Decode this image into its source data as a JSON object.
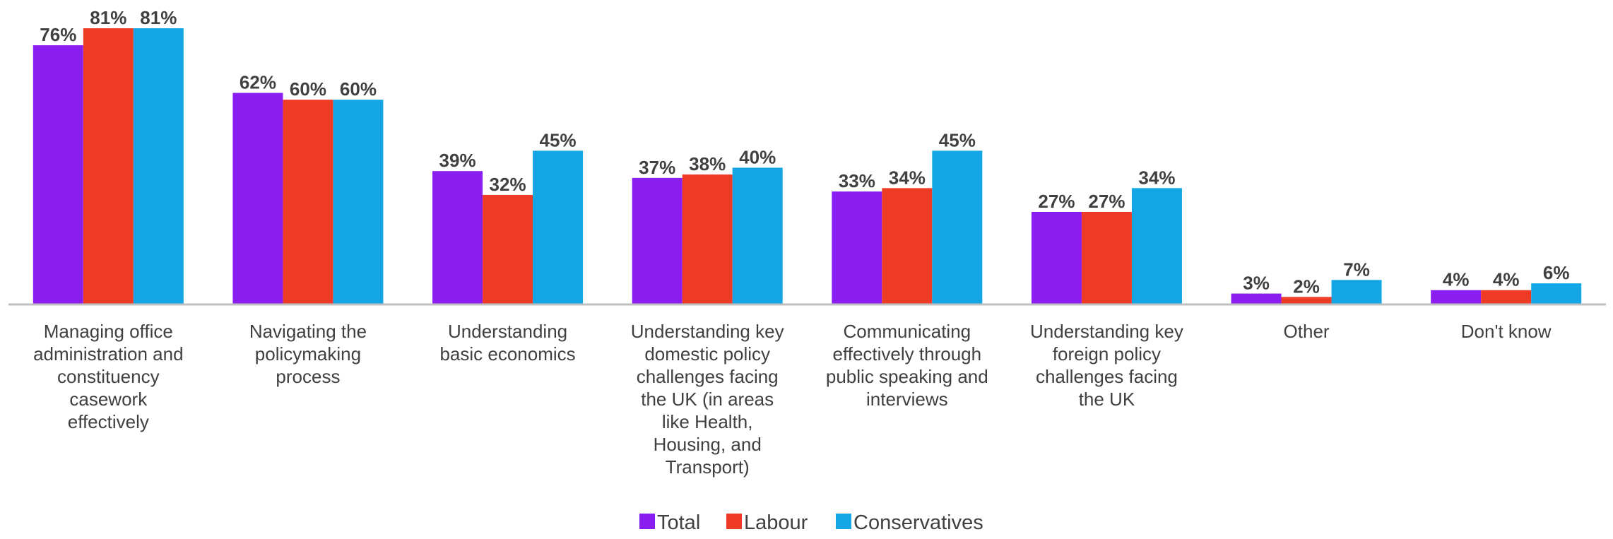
{
  "chart_data": {
    "type": "bar",
    "categories": [
      [
        "Managing office",
        "administration and",
        "constituency",
        "casework",
        "effectively"
      ],
      [
        "Navigating the",
        "policymaking",
        "process"
      ],
      [
        "Understanding",
        "basic economics"
      ],
      [
        "Understanding key",
        "domestic policy",
        "challenges facing",
        "the UK (in areas",
        "like Health,",
        "Housing, and",
        "Transport)"
      ],
      [
        "Communicating",
        "effectively through",
        "public speaking and",
        "interviews"
      ],
      [
        "Understanding key",
        "foreign policy",
        "challenges facing",
        "the UK"
      ],
      [
        "Other"
      ],
      [
        "Don't know"
      ]
    ],
    "series": [
      {
        "name": "Total",
        "color": "#8a1ef0",
        "values": [
          76,
          62,
          39,
          37,
          33,
          27,
          3,
          4
        ]
      },
      {
        "name": "Labour",
        "color": "#ee3b25",
        "values": [
          81,
          60,
          32,
          38,
          34,
          27,
          2,
          4
        ]
      },
      {
        "name": "Conservatives",
        "color": "#14a6e4",
        "values": [
          81,
          60,
          45,
          40,
          45,
          34,
          7,
          6
        ]
      }
    ],
    "value_suffix": "%",
    "ylim": [
      0,
      81
    ],
    "legend_position": "bottom-center",
    "grid": false
  }
}
